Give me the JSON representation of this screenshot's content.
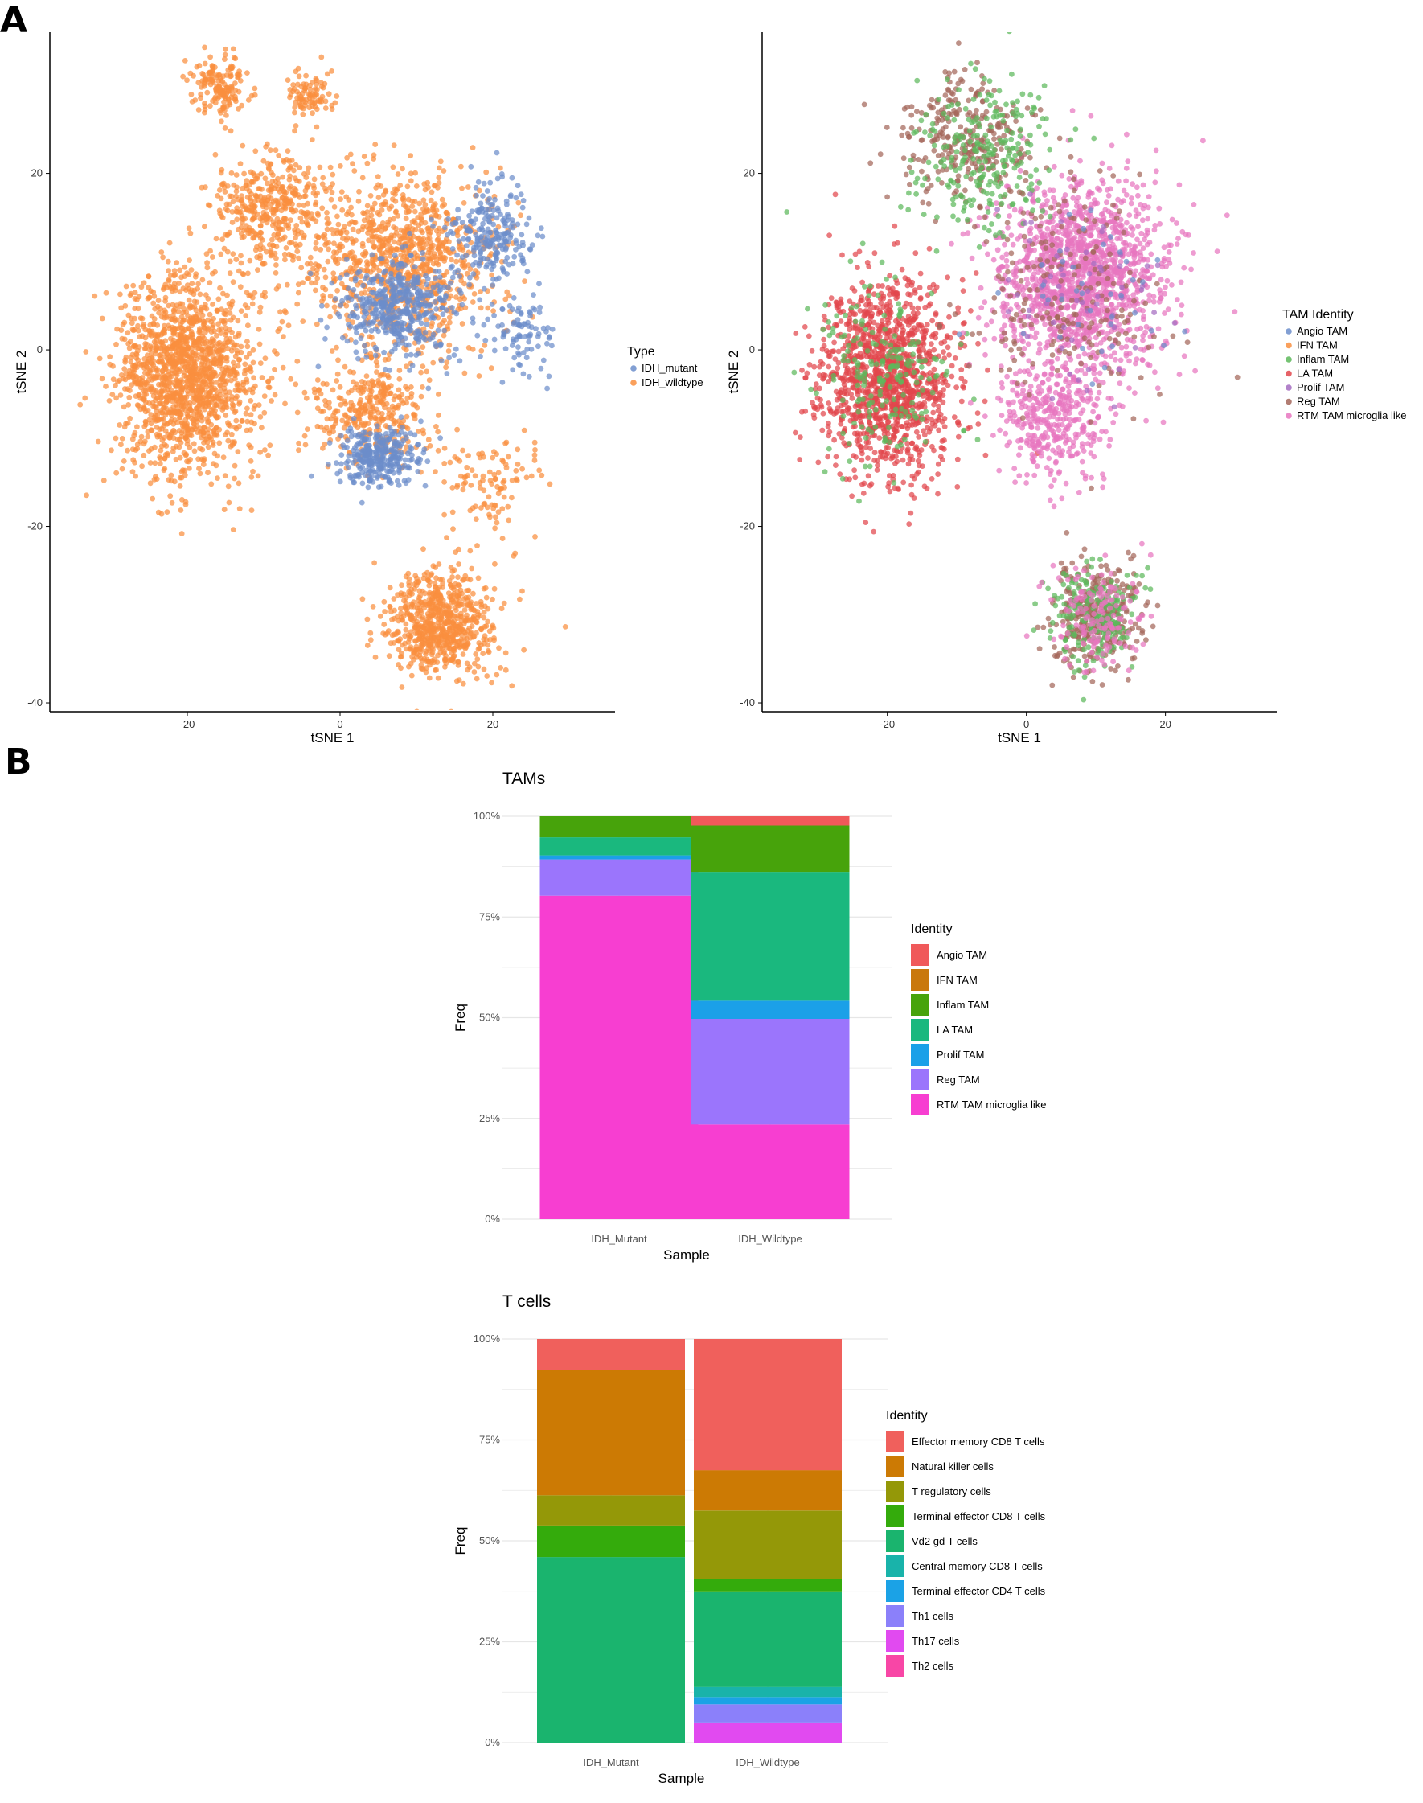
{
  "panels": {
    "a": "A",
    "b": "B"
  },
  "chart_data": [
    {
      "type": "scatter",
      "panel": "A",
      "xlabel": "tSNE 1",
      "ylabel": "tSNE 2",
      "xlim": [
        -38,
        36
      ],
      "ylim": [
        -41,
        36
      ],
      "xticks": [
        -20,
        0,
        20
      ],
      "yticks": [
        -40,
        -20,
        0,
        20
      ],
      "legend_title": "Type",
      "series": [
        {
          "name": "IDH_mutant",
          "color": "#6C8ECB"
        },
        {
          "name": "IDH_wildtype",
          "color": "#F98F3F"
        }
      ],
      "clusters": [
        {
          "series": "IDH_wildtype",
          "center": [
            -20,
            -3
          ],
          "spread": [
            8.5,
            10
          ],
          "n": 1500
        },
        {
          "series": "IDH_wildtype",
          "center": [
            -16,
            30
          ],
          "spread": [
            3.5,
            3
          ],
          "n": 160
        },
        {
          "series": "IDH_wildtype",
          "center": [
            -4,
            29
          ],
          "spread": [
            3,
            2.5
          ],
          "n": 90
        },
        {
          "series": "IDH_wildtype",
          "center": [
            -9,
            16
          ],
          "spread": [
            7,
            6
          ],
          "n": 420
        },
        {
          "series": "IDH_wildtype",
          "center": [
            8,
            10
          ],
          "spread": [
            11,
            9
          ],
          "n": 950
        },
        {
          "series": "IDH_wildtype",
          "center": [
            4,
            -7
          ],
          "spread": [
            7,
            5
          ],
          "n": 330
        },
        {
          "series": "IDH_wildtype",
          "center": [
            20,
            -15
          ],
          "spread": [
            6,
            5
          ],
          "n": 110
        },
        {
          "series": "IDH_wildtype",
          "center": [
            13,
            -31
          ],
          "spread": [
            6.5,
            5.5
          ],
          "n": 700
        },
        {
          "series": "IDH_mutant",
          "center": [
            8,
            5
          ],
          "spread": [
            7,
            5
          ],
          "n": 450
        },
        {
          "series": "IDH_mutant",
          "center": [
            5,
            -12
          ],
          "spread": [
            4.5,
            3
          ],
          "n": 320
        },
        {
          "series": "IDH_mutant",
          "center": [
            20,
            13
          ],
          "spread": [
            5,
            5
          ],
          "n": 230
        },
        {
          "series": "IDH_mutant",
          "center": [
            24,
            2
          ],
          "spread": [
            4,
            4
          ],
          "n": 90
        }
      ]
    },
    {
      "type": "scatter",
      "panel": "A",
      "xlabel": "tSNE 1",
      "ylabel": "tSNE 2",
      "xlim": [
        -38,
        36
      ],
      "ylim": [
        -41,
        36
      ],
      "xticks": [
        -20,
        0,
        20
      ],
      "yticks": [
        -40,
        -20,
        0,
        20
      ],
      "legend_title": "TAM Identity",
      "series": [
        {
          "name": "Angio TAM",
          "color": "#6C8ECB"
        },
        {
          "name": "IFN TAM",
          "color": "#F98F3F"
        },
        {
          "name": "Inflam TAM",
          "color": "#5DB85B"
        },
        {
          "name": "LA TAM",
          "color": "#E2474C"
        },
        {
          "name": "Prolif TAM",
          "color": "#A56CC1"
        },
        {
          "name": "Reg TAM",
          "color": "#A4665A"
        },
        {
          "name": "RTM TAM microglia like",
          "color": "#E876BF"
        }
      ],
      "clusters": [
        {
          "series": "LA TAM",
          "center": [
            -20,
            -3
          ],
          "spread": [
            8.5,
            10
          ],
          "n": 1300
        },
        {
          "series": "Inflam TAM",
          "center": [
            -20,
            -3
          ],
          "spread": [
            8.5,
            10
          ],
          "n": 200
        },
        {
          "series": "RTM TAM microglia like",
          "center": [
            8,
            8
          ],
          "spread": [
            11,
            10
          ],
          "n": 1500
        },
        {
          "series": "Reg TAM",
          "center": [
            -9,
            24
          ],
          "spread": [
            8,
            7
          ],
          "n": 300
        },
        {
          "series": "Inflam TAM",
          "center": [
            -6,
            22
          ],
          "spread": [
            9,
            8
          ],
          "n": 250
        },
        {
          "series": "RTM TAM microglia like",
          "center": [
            4,
            -8
          ],
          "spread": [
            7,
            6
          ],
          "n": 350
        },
        {
          "series": "Reg TAM",
          "center": [
            10,
            -30
          ],
          "spread": [
            6,
            5.5
          ],
          "n": 350
        },
        {
          "series": "Inflam TAM",
          "center": [
            10,
            -30
          ],
          "spread": [
            6,
            5.5
          ],
          "n": 200
        },
        {
          "series": "RTM TAM microglia like",
          "center": [
            10,
            -30
          ],
          "spread": [
            6,
            5.5
          ],
          "n": 150
        },
        {
          "series": "Reg TAM",
          "center": [
            6,
            6
          ],
          "spread": [
            13,
            11
          ],
          "n": 200
        },
        {
          "series": "Prolif TAM",
          "center": [
            8,
            6
          ],
          "spread": [
            12,
            10
          ],
          "n": 60
        },
        {
          "series": "Angio TAM",
          "center": [
            8,
            6
          ],
          "spread": [
            12,
            10
          ],
          "n": 40
        }
      ]
    },
    {
      "type": "bar",
      "stacked": true,
      "panel": "B",
      "title": "TAMs",
      "xlabel": "Sample",
      "ylabel": "Freq",
      "yticks": [
        "0%",
        "25%",
        "50%",
        "75%",
        "100%"
      ],
      "categories": [
        "IDH_Mutant",
        "IDH_Wildtype"
      ],
      "legend_title": "Identity",
      "series": [
        {
          "name": "Angio TAM",
          "color": "#F0595A",
          "values": [
            0.0,
            0.023
          ]
        },
        {
          "name": "IFN TAM",
          "color": "#C9780C",
          "values": [
            0.0,
            0.0
          ]
        },
        {
          "name": "Inflam TAM",
          "color": "#47A30B",
          "values": [
            0.052,
            0.115
          ]
        },
        {
          "name": "LA TAM",
          "color": "#1AB87E",
          "values": [
            0.045,
            0.32
          ]
        },
        {
          "name": "Prolif TAM",
          "color": "#1BA0E8",
          "values": [
            0.01,
            0.045
          ]
        },
        {
          "name": "Reg TAM",
          "color": "#9B75FC",
          "values": [
            0.09,
            0.262
          ]
        },
        {
          "name": "RTM TAM microglia like",
          "color": "#F73ED1",
          "values": [
            0.803,
            0.235
          ]
        }
      ]
    },
    {
      "type": "bar",
      "stacked": true,
      "panel": "B",
      "title": "T cells",
      "xlabel": "Sample",
      "ylabel": "Freq",
      "yticks": [
        "0%",
        "25%",
        "50%",
        "75%",
        "100%"
      ],
      "categories": [
        "IDH_Mutant",
        "IDH_Wildtype"
      ],
      "legend_title": "Identity",
      "series": [
        {
          "name": "Effector memory CD8 T cells",
          "color": "#F0605C",
          "values": [
            0.077,
            0.325
          ]
        },
        {
          "name": "Natural killer cells",
          "color": "#CC7A04",
          "values": [
            0.31,
            0.1
          ]
        },
        {
          "name": "T regulatory cells",
          "color": "#949808",
          "values": [
            0.075,
            0.17
          ]
        },
        {
          "name": "Terminal effector CD8 T cells",
          "color": "#34AB0C",
          "values": [
            0.078,
            0.032
          ]
        },
        {
          "name": "Vd2 gd T cells",
          "color": "#1AB46E",
          "values": [
            0.46,
            0.235
          ]
        },
        {
          "name": "Central memory CD8 T cells",
          "color": "#19B3AA",
          "values": [
            0.0,
            0.025
          ]
        },
        {
          "name": "Terminal effector CD4 T cells",
          "color": "#1BA2E6",
          "values": [
            0.0,
            0.018
          ]
        },
        {
          "name": "Th1 cells",
          "color": "#8B80FA",
          "values": [
            0.0,
            0.045
          ]
        },
        {
          "name": "Th17 cells",
          "color": "#E14AF0",
          "values": [
            0.0,
            0.05
          ]
        },
        {
          "name": "Th2 cells",
          "color": "#F846A6",
          "values": [
            0.0,
            0.0
          ]
        }
      ]
    }
  ]
}
